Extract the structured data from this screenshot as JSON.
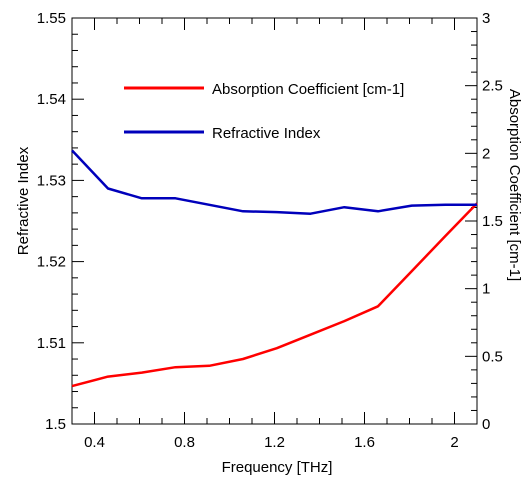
{
  "chart_data": {
    "type": "line",
    "title": "",
    "xlabel": "Frequency [THz]",
    "ylabel_left": "Refractive Index",
    "ylabel_right": "Absorption Coefficient [cm-1]",
    "xlim": [
      0.3,
      2.1
    ],
    "ylim_left": [
      1.5,
      1.55
    ],
    "ylim_right": [
      0,
      3
    ],
    "x_ticks": [
      "0.4",
      "0.8",
      "1.2",
      "1.6",
      "2"
    ],
    "y_left_ticks": [
      "1.5",
      "1.51",
      "1.52",
      "1.53",
      "1.54",
      "1.55"
    ],
    "y_right_ticks": [
      "0",
      "0.5",
      "1",
      "1.5",
      "2",
      "2.5",
      "3"
    ],
    "grid": false,
    "legend_position": "top-center",
    "series": [
      {
        "name": "Absorption Coefficient [cm-1]",
        "axis": "right",
        "color": "#ff0000",
        "x": [
          0.3,
          0.46,
          0.61,
          0.76,
          0.91,
          1.06,
          1.21,
          1.36,
          1.51,
          1.66,
          1.81,
          1.96,
          2.1
        ],
        "y": [
          0.28,
          0.35,
          0.38,
          0.42,
          0.43,
          0.48,
          0.56,
          0.66,
          0.76,
          0.87,
          1.13,
          1.39,
          1.63
        ]
      },
      {
        "name": "Refractive Index",
        "axis": "left",
        "color": "#0000bb",
        "x": [
          0.3,
          0.46,
          0.61,
          0.76,
          0.91,
          1.06,
          1.21,
          1.36,
          1.51,
          1.66,
          1.81,
          1.96,
          2.1
        ],
        "y": [
          1.5337,
          1.529,
          1.5278,
          1.5278,
          1.527,
          1.5262,
          1.5261,
          1.5259,
          1.5267,
          1.5262,
          1.5269,
          1.527,
          1.527
        ]
      }
    ]
  }
}
